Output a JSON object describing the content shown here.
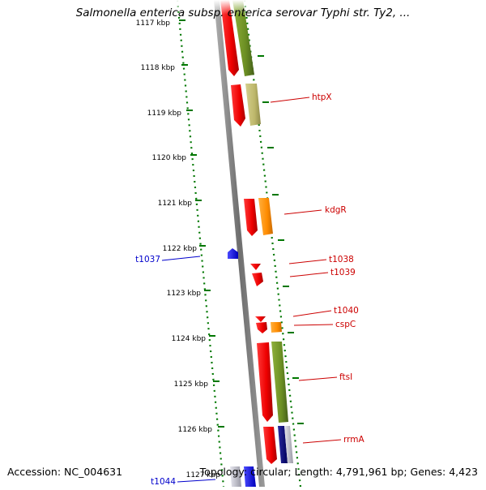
{
  "title": "Salmonella enterica subsp. enterica serovar Typhi str. Ty2, ...",
  "footer": {
    "accession": "Accession: NC_004631",
    "topology": "Topology: circular; Length: 4,791,961 bp; Genes: 4,423"
  },
  "ticks": [
    "1117 kbp",
    "1118 kbp",
    "1119 kbp",
    "1120 kbp",
    "1121 kbp",
    "1122 kbp",
    "1123 kbp",
    "1124 kbp",
    "1125 kbp",
    "1126 kbp",
    "1127 kbp"
  ],
  "gene_labels": [
    {
      "text": "htpX",
      "color": "#cc0000"
    },
    {
      "text": "kdgR",
      "color": "#cc0000"
    },
    {
      "text": "t1038",
      "color": "#cc0000"
    },
    {
      "text": "t1039",
      "color": "#cc0000"
    },
    {
      "text": "t1040",
      "color": "#cc0000"
    },
    {
      "text": "cspC",
      "color": "#cc0000"
    },
    {
      "text": "ftsI",
      "color": "#cc0000"
    },
    {
      "text": "rrmA",
      "color": "#cc0000"
    },
    {
      "text": "t1037",
      "color": "#0000cc"
    },
    {
      "text": "t1044",
      "color": "#0000cc"
    }
  ],
  "colors": {
    "forward_gene": "#ff0000",
    "reverse_gene": "#0000ff",
    "cog_olive": "#6b8e23",
    "cog_khaki": "#bdb76b",
    "cog_orange": "#ff8c00",
    "cog_navy": "#00007f",
    "backbone": "#808080",
    "tick_dots": "#007700"
  }
}
